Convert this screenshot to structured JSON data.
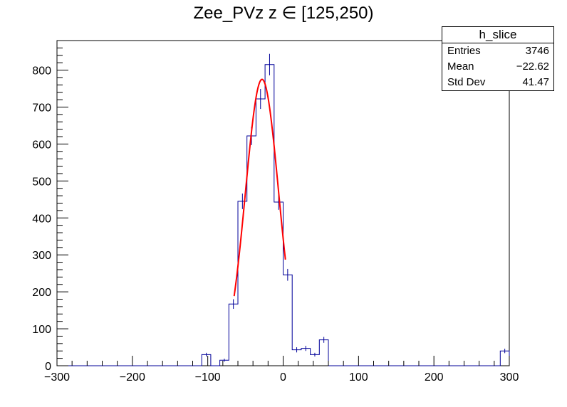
{
  "chart_data": {
    "type": "histogram",
    "title": "Zee_PVz z  ∈ [125,250)",
    "xlabel": "",
    "ylabel": "",
    "xlim": [
      -300,
      300
    ],
    "ylim": [
      0,
      880
    ],
    "bin_width": 12,
    "x_ticks": [
      -300,
      -200,
      -100,
      0,
      100,
      200,
      300
    ],
    "x_tick_labels": [
      "−300",
      "−200",
      "−100",
      "0",
      "100",
      "200",
      "300"
    ],
    "y_ticks": [
      0,
      100,
      200,
      300,
      400,
      500,
      600,
      700,
      800
    ],
    "y_tick_labels": [
      "0",
      "100",
      "200",
      "300",
      "400",
      "500",
      "600",
      "700",
      "800"
    ],
    "bins": [
      {
        "x0": -108,
        "value": 30,
        "err": 5
      },
      {
        "x0": -96,
        "value": 0,
        "err": 0
      },
      {
        "x0": -84,
        "value": 15,
        "err": 4
      },
      {
        "x0": -72,
        "value": 167,
        "err": 13
      },
      {
        "x0": -60,
        "value": 445,
        "err": 21
      },
      {
        "x0": -48,
        "value": 622,
        "err": 25
      },
      {
        "x0": -36,
        "value": 722,
        "err": 27
      },
      {
        "x0": -24,
        "value": 815,
        "err": 29
      },
      {
        "x0": -12,
        "value": 443,
        "err": 21
      },
      {
        "x0": 0,
        "value": 246,
        "err": 16
      },
      {
        "x0": 12,
        "value": 43,
        "err": 7
      },
      {
        "x0": 24,
        "value": 47,
        "err": 7
      },
      {
        "x0": 36,
        "value": 30,
        "err": 5
      },
      {
        "x0": 48,
        "value": 70,
        "err": 8
      },
      {
        "x0": 288,
        "value": 40,
        "err": 6
      }
    ],
    "fit": {
      "type": "gaussian",
      "amplitude": 775,
      "mean": -28,
      "sigma": 22,
      "range": [
        -65,
        3
      ],
      "color": "#ff0000"
    },
    "histogram_color": "#000099",
    "grid": false,
    "stats_box": {
      "name": "h_slice",
      "rows": [
        {
          "label": "Entries",
          "value": "3746"
        },
        {
          "label": "Mean",
          "value": "−22.62"
        },
        {
          "label": "Std Dev",
          "value": "41.47"
        }
      ]
    }
  }
}
